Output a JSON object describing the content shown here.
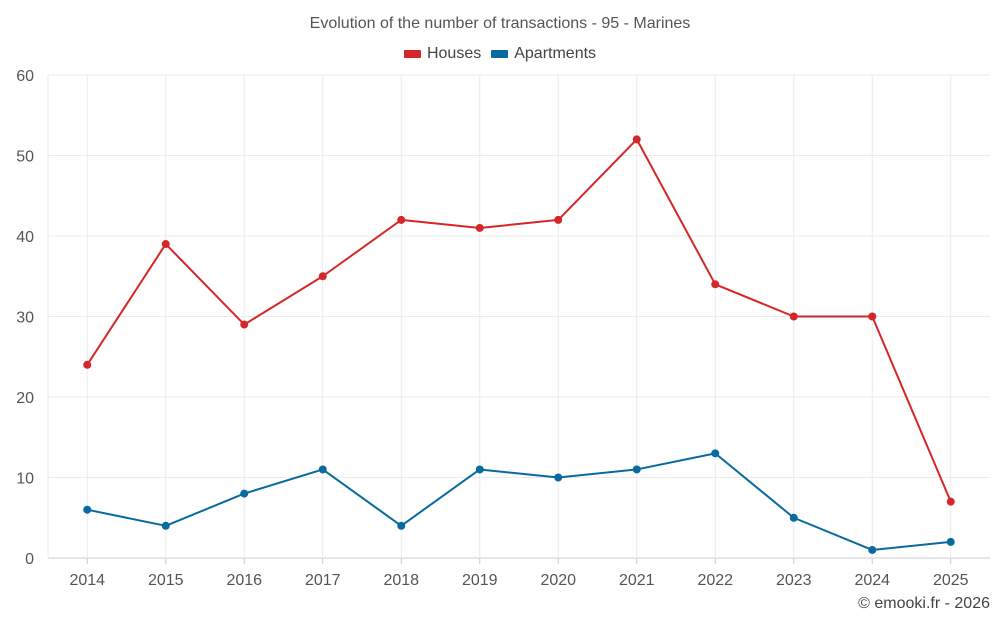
{
  "chart_data": {
    "type": "line",
    "title": "Evolution of the number of transactions - 95 - Marines",
    "categories": [
      "2014",
      "2015",
      "2016",
      "2017",
      "2018",
      "2019",
      "2020",
      "2021",
      "2022",
      "2023",
      "2024",
      "2025"
    ],
    "series": [
      {
        "name": "Houses",
        "color": "#d62728",
        "values": [
          24,
          39,
          29,
          35,
          42,
          41,
          42,
          52,
          34,
          30,
          30,
          7
        ]
      },
      {
        "name": "Apartments",
        "color": "#086a9e",
        "values": [
          6,
          4,
          8,
          11,
          4,
          11,
          10,
          11,
          13,
          5,
          1,
          2
        ]
      }
    ],
    "ylim": [
      0,
      60
    ],
    "yticks": [
      0,
      10,
      20,
      30,
      40,
      50,
      60
    ],
    "xlabel": "",
    "ylabel": "",
    "grid": true,
    "legend_position": "top-center"
  },
  "credit": "© emooki.fr - 2026"
}
